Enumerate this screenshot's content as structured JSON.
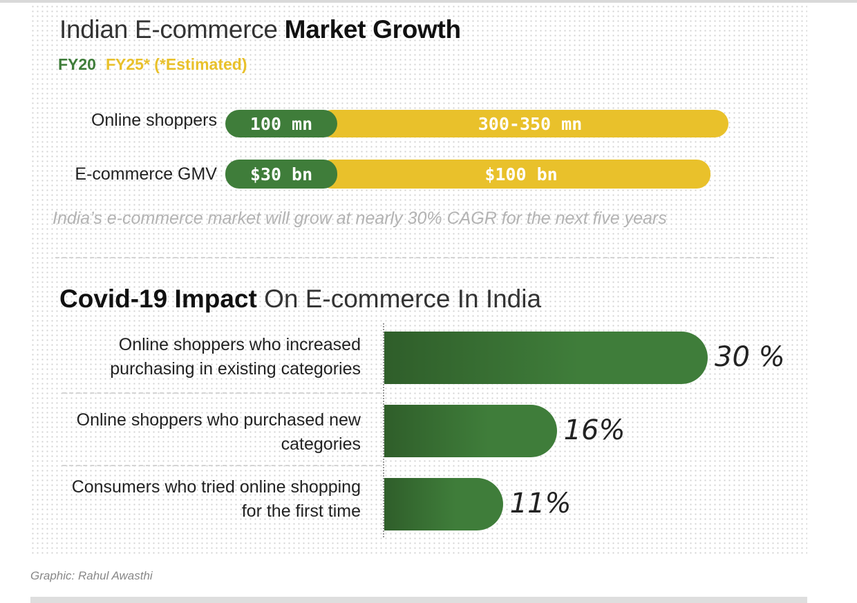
{
  "title1": {
    "light": "Indian E-commerce ",
    "bold": "Market Growth"
  },
  "legend": {
    "fy20": "FY20",
    "fy25": "FY25* (*Estimated)"
  },
  "note": "India’s e-commerce market will grow at nearly 30% CAGR for the next five years",
  "title2": {
    "bold": "Covid-19 Impact",
    "light": " On E-commerce In India"
  },
  "credit": "Graphic: Rahul Awasthi",
  "colors": {
    "green": "#3f7d3a",
    "yellow": "#e9c12b"
  },
  "chart_data": [
    {
      "type": "bar",
      "title": "Indian E-commerce Market Growth",
      "categories": [
        "Online shoppers",
        "E-commerce GMV"
      ],
      "series": [
        {
          "name": "FY20",
          "labels": [
            "100 mn",
            "$30 bn"
          ],
          "values": [
            100,
            30
          ]
        },
        {
          "name": "FY25* (*Estimated)",
          "labels": [
            "300-350 mn",
            "$100 bn"
          ],
          "values": [
            325,
            100
          ]
        }
      ]
    },
    {
      "type": "bar",
      "title": "Covid-19 Impact On E-commerce In India",
      "categories": [
        "Online shoppers who increased purchasing in existing categories",
        "Online shoppers who purchased new categories",
        "Consumers who tried online shopping for the first time"
      ],
      "values": [
        30,
        16,
        11
      ],
      "labels": [
        "30 %",
        "16%",
        "11%"
      ]
    }
  ]
}
